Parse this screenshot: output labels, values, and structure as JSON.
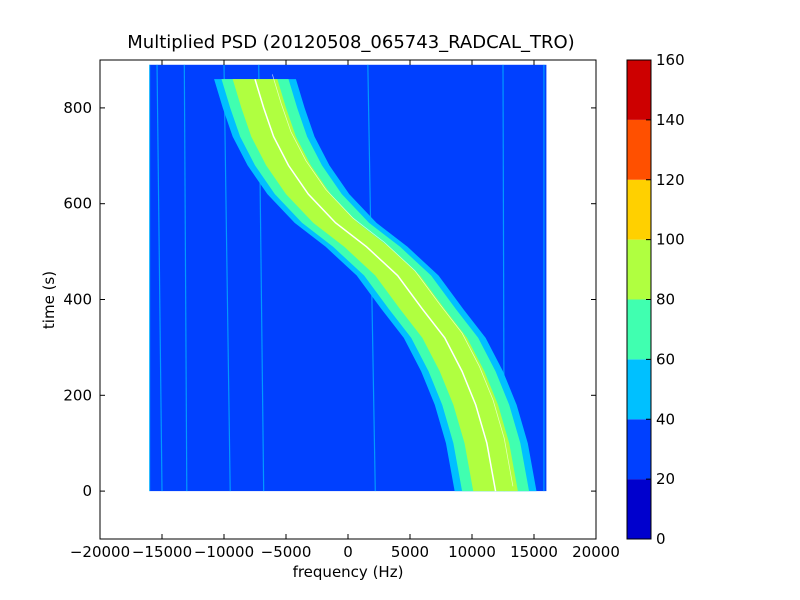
{
  "chart_data": {
    "type": "heatmap",
    "title": "Multiplied PSD (20120508_065743_RADCAL_TRO)",
    "xlabel": "frequency (Hz)",
    "ylabel": "time (s)",
    "xlim": [
      -20000,
      20000
    ],
    "ylim": [
      -100,
      900
    ],
    "x_ticks": [
      -20000,
      -15000,
      -10000,
      -5000,
      0,
      5000,
      10000,
      15000,
      20000
    ],
    "y_ticks": [
      0,
      200,
      400,
      600,
      800
    ],
    "x_tick_labels": [
      "−20000",
      "−15000",
      "−10000",
      "−5000",
      "0",
      "5000",
      "10000",
      "15000",
      "20000"
    ],
    "y_tick_labels": [
      "0",
      "200",
      "400",
      "600",
      "800"
    ],
    "data_extent": {
      "x": [
        -16000,
        16000
      ],
      "y": [
        0,
        890
      ]
    },
    "grid": false,
    "colorbar": {
      "levels": [
        0,
        20,
        40,
        60,
        80,
        100,
        120,
        140,
        160
      ],
      "tick_labels": [
        "0",
        "20",
        "40",
        "60",
        "80",
        "100",
        "120",
        "140",
        "160"
      ],
      "colors": [
        "#0000cd",
        "#0040ff",
        "#00c0ff",
        "#40ffb0",
        "#b0ff40",
        "#ffd000",
        "#ff5000",
        "#cd0000"
      ]
    },
    "background_level_color": "#0040ff",
    "trace": {
      "center_frequency": [
        [
          -7500,
          860
        ],
        [
          -6800,
          800
        ],
        [
          -6000,
          740
        ],
        [
          -4800,
          680
        ],
        [
          -3200,
          620
        ],
        [
          -1000,
          560
        ],
        [
          1500,
          510
        ],
        [
          4000,
          450
        ],
        [
          6000,
          380
        ],
        [
          7800,
          320
        ],
        [
          9200,
          250
        ],
        [
          10300,
          180
        ],
        [
          11200,
          100
        ],
        [
          11900,
          0
        ]
      ],
      "inner_half_width_hz": 1800,
      "mid_half_width_hz": 2700,
      "outer_half_width_hz": 3300
    },
    "vertical_lines": [
      {
        "x_top": -16000,
        "x_bottom": -16000
      },
      {
        "x_top": -15400,
        "x_bottom": -15000
      },
      {
        "x_top": -13200,
        "x_bottom": -13000
      },
      {
        "x_top": -10000,
        "x_bottom": -9500
      },
      {
        "x_top": -7200,
        "x_bottom": -6800
      },
      {
        "x_top": 1600,
        "x_bottom": 2200
      },
      {
        "x_top": 12500,
        "x_bottom": 12600
      },
      {
        "x_top": 15800,
        "x_bottom": 15800
      }
    ]
  }
}
